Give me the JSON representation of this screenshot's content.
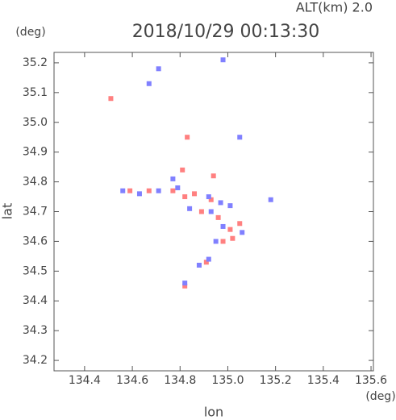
{
  "chart_data": {
    "type": "scatter",
    "title": "2018/10/29 00:13:30",
    "subtitle": "ALT(km) 2.0",
    "x_label": "lon",
    "y_label": "lat",
    "x_unit": "(deg)",
    "y_unit": "(deg)",
    "xlim": [
      134.272,
      135.61
    ],
    "ylim": [
      34.165,
      35.235
    ],
    "xticks": [
      134.4,
      134.6,
      134.8,
      {
        "value": 135,
        "label": "135.0"
      },
      135.2,
      135.4,
      135.6
    ],
    "yticks": [
      34.2,
      34.3,
      34.4,
      34.5,
      34.6,
      34.7,
      34.8,
      34.9,
      {
        "value": 35,
        "label": "35.0"
      },
      35.1,
      35.2
    ],
    "grid": false,
    "series": [
      {
        "color": "#ff8080",
        "x": [
          134.51,
          134.83,
          134.94,
          134.81,
          134.59,
          134.67,
          134.82,
          134.86,
          134.93,
          134.89,
          134.96,
          135.01,
          135.05,
          135.02,
          134.98,
          134.91,
          134.82,
          134.77
        ],
        "y": [
          35.08,
          34.95,
          34.82,
          34.84,
          34.77,
          34.77,
          34.75,
          34.76,
          34.74,
          34.7,
          34.68,
          34.64,
          34.66,
          34.61,
          34.6,
          34.53,
          34.45,
          34.77
        ]
      },
      {
        "color": "#8080ff",
        "x": [
          134.71,
          134.67,
          134.98,
          135.05,
          135.18,
          134.71,
          134.63,
          134.77,
          134.84,
          134.92,
          134.97,
          135.01,
          134.93,
          134.98,
          134.95,
          135.06,
          134.88,
          134.92,
          134.82,
          134.79,
          134.56
        ],
        "y": [
          35.18,
          35.13,
          35.21,
          34.95,
          34.74,
          34.77,
          34.76,
          34.81,
          34.71,
          34.75,
          34.73,
          34.72,
          34.7,
          34.65,
          34.6,
          34.63,
          34.52,
          34.54,
          34.46,
          34.78,
          34.77
        ]
      }
    ]
  }
}
